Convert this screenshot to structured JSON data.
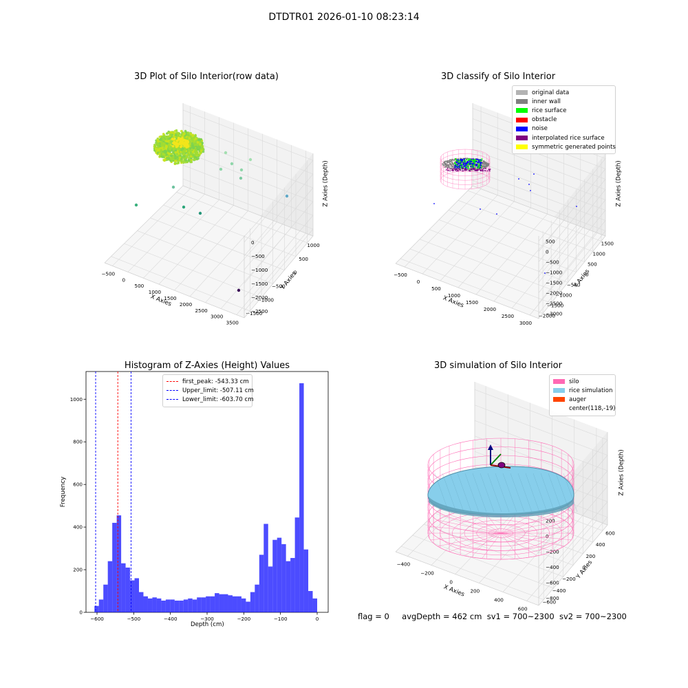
{
  "suptitle": "DTDTR01 2026-01-10 08:23:14",
  "status": {
    "flag": "flag = 0",
    "avg_depth": "avgDepth = 462 cm",
    "sv1": "sv1 = 700~2300",
    "sv2": "sv2 = 700~2300"
  },
  "colors": {
    "original_data": "#b3b3b3",
    "inner_wall": "#808080",
    "rice_surface": "#00ff00",
    "obstacle": "#ff0000",
    "noise": "#0000ff",
    "interpolated_rice_surface": "#800080",
    "symmetric_generated_points": "#ffff00",
    "silo": "#ff69b4",
    "rice_simulation": "#87ceeb",
    "auger": "#ff4500",
    "histogram_bar": "#0000ff"
  },
  "chart_data": [
    {
      "type": "scatter3d",
      "title": "3D Plot of Silo Interior(row data)",
      "xlabel": "X Axies",
      "ylabel": "Y Axies",
      "zlabel": "Z Axies (Depth)",
      "xticks": [
        "−500",
        "0",
        "500",
        "1000",
        "1500",
        "2000",
        "2500",
        "3000",
        "3500"
      ],
      "yticks": [
        "−1500",
        "−1000",
        "−500",
        "0",
        "500",
        "1000"
      ],
      "zticks": [
        "−2500",
        "−2000",
        "−1500",
        "−1000",
        "−500",
        "0"
      ],
      "xlim": [
        -700,
        3600
      ],
      "ylim": [
        -1700,
        1200
      ],
      "zlim": [
        -2700,
        100
      ]
    },
    {
      "type": "scatter3d",
      "title": "3D classify of Silo Interior",
      "xlabel": "X Axies",
      "ylabel": "Y Axies",
      "zlabel": "Z Axies (Depth)",
      "xticks": [
        "−500",
        "0",
        "500",
        "1000",
        "1500",
        "2000",
        "2500",
        "3000"
      ],
      "yticks": [
        "−2000",
        "−1500",
        "−1000",
        "−500",
        "0",
        "500",
        "1000",
        "1500"
      ],
      "zticks": [
        "−3000",
        "−2500",
        "−2000",
        "−1500",
        "−1000",
        "−500",
        "0",
        "500"
      ],
      "xlim": [
        -600,
        3200
      ],
      "ylim": [
        -2200,
        1700
      ],
      "zlim": [
        -3100,
        600
      ],
      "legend": [
        "original data",
        "inner wall",
        "rice surface",
        "obstacle",
        "noise",
        "interpolated rice surface",
        "symmetric generated points"
      ],
      "legend_position": "top-right"
    },
    {
      "type": "bar",
      "title": "Histogram of Z-Axies (Height) Values",
      "xlabel": "Depth (cm)",
      "ylabel": "Frequency",
      "xlim": [
        -630,
        30
      ],
      "ylim": [
        0,
        1130
      ],
      "xticks": [
        "−600",
        "−500",
        "−400",
        "−300",
        "−200",
        "−100",
        "0"
      ],
      "yticks": [
        "0",
        "200",
        "400",
        "600",
        "800",
        "1000"
      ],
      "bin_start": -607,
      "bin_width": 12.14,
      "values": [
        30,
        60,
        130,
        240,
        420,
        455,
        230,
        210,
        150,
        160,
        95,
        75,
        65,
        70,
        65,
        55,
        60,
        60,
        55,
        55,
        60,
        65,
        60,
        70,
        70,
        75,
        75,
        90,
        85,
        85,
        80,
        75,
        75,
        65,
        50,
        95,
        130,
        270,
        415,
        215,
        340,
        350,
        320,
        240,
        255,
        445,
        1075,
        295,
        100,
        65
      ],
      "lines": [
        {
          "label": "first_peak: -543.33 cm",
          "x": -543.33,
          "color": "#ff0000"
        },
        {
          "label": "Upper_limit: -507.11 cm",
          "x": -507.11,
          "color": "#0000ff"
        },
        {
          "label": "Lower_limit: -603.70 cm",
          "x": -603.7,
          "color": "#0000ff"
        }
      ],
      "legend_position": "top-center"
    },
    {
      "type": "surface3d",
      "title": "3D simulation of Silo Interior",
      "xlabel": "X Axies",
      "ylabel": "Y Axies",
      "zlabel": "Z Axies (Depth)",
      "xticks": [
        "−400",
        "−200",
        "0",
        "200",
        "400",
        "600"
      ],
      "yticks": [
        "−600",
        "−400",
        "−200",
        "0",
        "200",
        "400",
        "600"
      ],
      "zticks": [
        "−800",
        "−600",
        "−400",
        "−200",
        "0",
        "200"
      ],
      "legend": [
        "silo",
        "rice simulation",
        "auger",
        "center(118,-19)"
      ],
      "legend_position": "top-right"
    }
  ]
}
